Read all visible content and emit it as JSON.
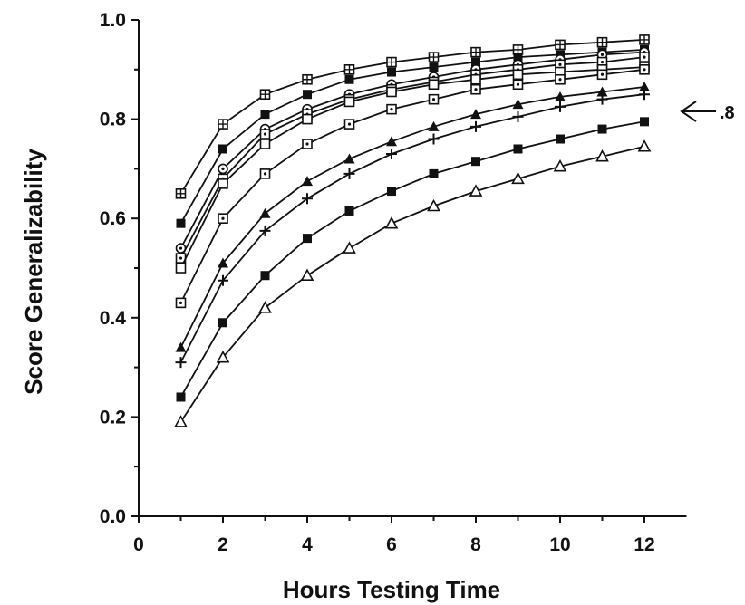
{
  "chart_data": {
    "type": "line",
    "xlabel": "Hours Testing Time",
    "ylabel": "Score Generalizability",
    "xlim": [
      0,
      13
    ],
    "ylim": [
      0,
      1.0
    ],
    "x_ticks": [
      "0",
      "2",
      "4",
      "6",
      "8",
      "10",
      "12"
    ],
    "y_ticks": [
      "0.0",
      "0.2",
      "0.4",
      "0.6",
      "0.8",
      "1.0"
    ],
    "grid": false,
    "legend": "none",
    "annotation": {
      "text": ".8",
      "points_to_y": 0.8
    },
    "x": [
      1,
      2,
      3,
      4,
      5,
      6,
      7,
      8,
      9,
      10,
      11,
      12
    ],
    "series": [
      {
        "marker": "square-cross",
        "values": [
          0.65,
          0.79,
          0.85,
          0.88,
          0.9,
          0.915,
          0.925,
          0.935,
          0.94,
          0.95,
          0.955,
          0.96
        ]
      },
      {
        "marker": "filled-square",
        "values": [
          0.59,
          0.74,
          0.81,
          0.85,
          0.88,
          0.895,
          0.905,
          0.915,
          0.925,
          0.93,
          0.935,
          0.94
        ]
      },
      {
        "marker": "circle-dot",
        "values": [
          0.54,
          0.7,
          0.78,
          0.82,
          0.85,
          0.87,
          0.885,
          0.9,
          0.91,
          0.92,
          0.93,
          0.935
        ]
      },
      {
        "marker": "square-dot",
        "values": [
          0.52,
          0.68,
          0.77,
          0.81,
          0.84,
          0.86,
          0.875,
          0.89,
          0.9,
          0.91,
          0.915,
          0.925
        ]
      },
      {
        "marker": "open-square",
        "values": [
          0.5,
          0.67,
          0.75,
          0.8,
          0.835,
          0.855,
          0.87,
          0.88,
          0.89,
          0.895,
          0.9,
          0.905
        ]
      },
      {
        "marker": "square-dot",
        "values": [
          0.43,
          0.6,
          0.69,
          0.75,
          0.79,
          0.82,
          0.84,
          0.86,
          0.87,
          0.88,
          0.89,
          0.9
        ]
      },
      {
        "marker": "filled-triangle",
        "values": [
          0.34,
          0.51,
          0.61,
          0.675,
          0.72,
          0.755,
          0.785,
          0.81,
          0.83,
          0.845,
          0.855,
          0.865
        ]
      },
      {
        "marker": "plus",
        "values": [
          0.31,
          0.475,
          0.575,
          0.64,
          0.69,
          0.73,
          0.76,
          0.785,
          0.805,
          0.825,
          0.84,
          0.85
        ]
      },
      {
        "marker": "filled-square",
        "values": [
          0.24,
          0.39,
          0.485,
          0.56,
          0.615,
          0.655,
          0.69,
          0.715,
          0.74,
          0.76,
          0.78,
          0.795
        ]
      },
      {
        "marker": "open-triangle",
        "values": [
          0.19,
          0.32,
          0.42,
          0.485,
          0.54,
          0.59,
          0.625,
          0.655,
          0.68,
          0.705,
          0.725,
          0.745
        ]
      }
    ]
  }
}
